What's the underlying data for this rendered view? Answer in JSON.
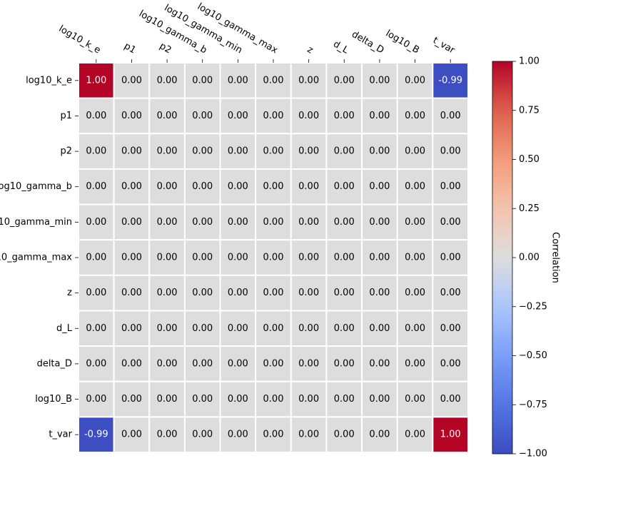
{
  "chart_data": {
    "type": "heatmap",
    "title": "",
    "variables": [
      "log10_k_e",
      "p1",
      "p2",
      "log10_gamma_b",
      "log10_gamma_min",
      "log10_gamma_max",
      "z",
      "d_L",
      "delta_D",
      "log10_B",
      "t_var"
    ],
    "matrix": [
      [
        1.0,
        0.0,
        0.0,
        0.0,
        0.0,
        0.0,
        0.0,
        0.0,
        0.0,
        0.0,
        -0.99
      ],
      [
        0.0,
        0.0,
        0.0,
        0.0,
        0.0,
        0.0,
        0.0,
        0.0,
        0.0,
        0.0,
        0.0
      ],
      [
        0.0,
        0.0,
        0.0,
        0.0,
        0.0,
        0.0,
        0.0,
        0.0,
        0.0,
        0.0,
        0.0
      ],
      [
        0.0,
        0.0,
        0.0,
        0.0,
        0.0,
        0.0,
        0.0,
        0.0,
        0.0,
        0.0,
        0.0
      ],
      [
        0.0,
        0.0,
        0.0,
        0.0,
        0.0,
        0.0,
        0.0,
        0.0,
        0.0,
        0.0,
        0.0
      ],
      [
        0.0,
        0.0,
        0.0,
        0.0,
        0.0,
        0.0,
        0.0,
        0.0,
        0.0,
        0.0,
        0.0
      ],
      [
        0.0,
        0.0,
        0.0,
        0.0,
        0.0,
        0.0,
        0.0,
        0.0,
        0.0,
        0.0,
        0.0
      ],
      [
        0.0,
        0.0,
        0.0,
        0.0,
        0.0,
        0.0,
        0.0,
        0.0,
        0.0,
        0.0,
        0.0
      ],
      [
        0.0,
        0.0,
        0.0,
        0.0,
        0.0,
        0.0,
        0.0,
        0.0,
        0.0,
        0.0,
        0.0
      ],
      [
        0.0,
        0.0,
        0.0,
        0.0,
        0.0,
        0.0,
        0.0,
        0.0,
        0.0,
        0.0,
        0.0
      ],
      [
        -0.99,
        0.0,
        0.0,
        0.0,
        0.0,
        0.0,
        0.0,
        0.0,
        0.0,
        0.0,
        1.0
      ]
    ],
    "value_format": "2 decimals",
    "colormap": "coolwarm",
    "colorbar": {
      "label": "Correlation",
      "range": [
        -1.0,
        1.0
      ],
      "ticks": [
        1.0,
        0.75,
        0.5,
        0.25,
        0.0,
        -0.25,
        -0.5,
        -0.75,
        -1.0
      ],
      "tick_labels": [
        "1.00",
        "0.75",
        "0.50",
        "0.25",
        "0.00",
        "−0.25",
        "−0.50",
        "−0.75",
        "−1.00"
      ]
    },
    "x_tick_position": "top",
    "grid": false
  }
}
